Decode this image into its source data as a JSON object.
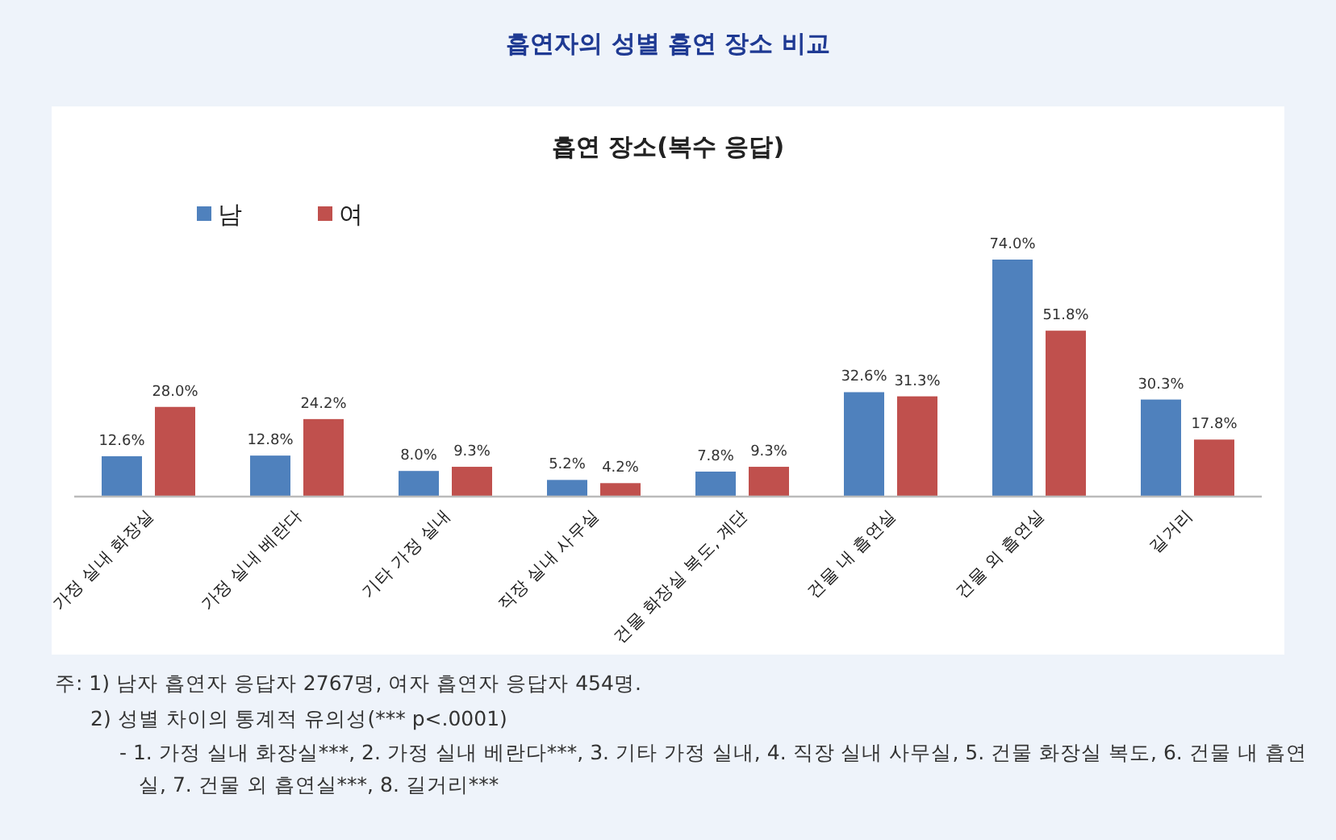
{
  "chart_data": {
    "type": "bar",
    "title": "흡연자의 성별 흡연 장소 비교",
    "subtitle": "흡연 장소(복수 응답)",
    "categories": [
      "가정 실내 화장실",
      "가정 실내 베란다",
      "기타 가정 실내",
      "직장 실내 사무실",
      "건물 화장실 복도, 계단",
      "건물 내 흡연실",
      "건물 외 흡연실",
      "길거리"
    ],
    "series": [
      {
        "name": "남",
        "color": "#4f81bd",
        "values": [
          12.6,
          12.8,
          8.0,
          5.2,
          7.8,
          32.6,
          74.0,
          30.3
        ],
        "value_labels": [
          "12.6%",
          "12.8%",
          "8.0%",
          "5.2%",
          "7.8%",
          "32.6%",
          "74.0%",
          "30.3%"
        ]
      },
      {
        "name": "여",
        "color": "#c0504d",
        "values": [
          28.0,
          24.2,
          9.3,
          4.2,
          9.3,
          31.3,
          51.8,
          17.8
        ],
        "value_labels": [
          "28.0%",
          "24.2%",
          "9.3%",
          "4.2%",
          "9.3%",
          "31.3%",
          "51.8%",
          "17.8%"
        ]
      }
    ],
    "legend": "top left",
    "annotations": [
      "주: 1) 남자 흡연자 응답자 2767명, 여자 흡연자 응답자 454명.",
      "2) 성별 차이의 통계적 유의성(*** p<.0001)",
      "- 1. 가정 실내 화장실***, 2. 가정 실내 베란다***, 3. 기타 가정 실내, 4. 직장 실내 사무실, 5. 건물 화장실 복도, 6. 건물 내 흡연실, 7. 건물 외 흡연실***, 8. 길거리***"
    ]
  }
}
